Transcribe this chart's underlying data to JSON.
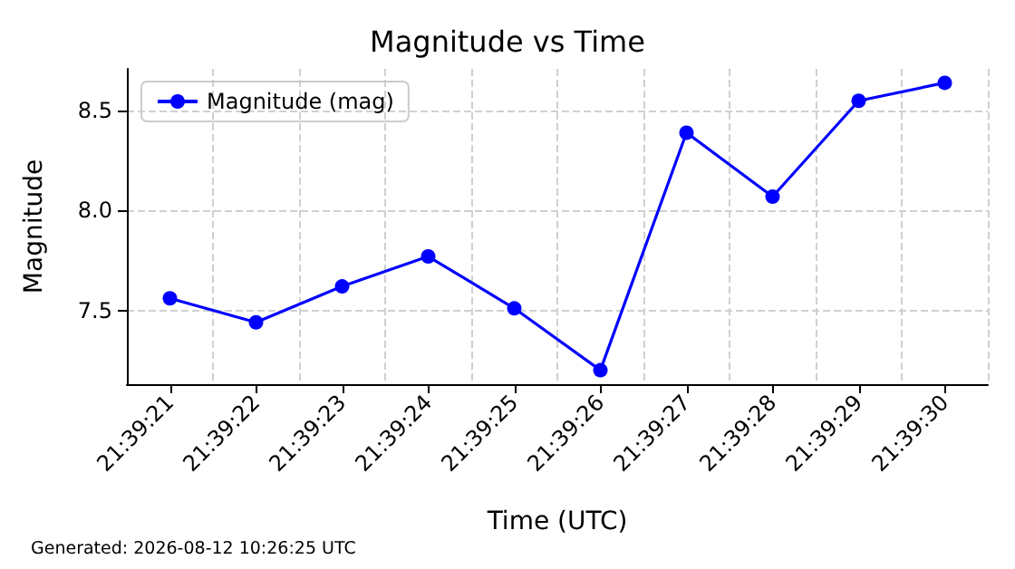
{
  "chart_data": {
    "type": "line",
    "title": "Magnitude vs Time",
    "xlabel": "Time (UTC)",
    "ylabel": "Magnitude",
    "categories": [
      "21:39:21",
      "21:39:22",
      "21:39:23",
      "21:39:24",
      "21:39:25",
      "21:39:26",
      "21:39:27",
      "21:39:28",
      "21:39:29",
      "21:39:30"
    ],
    "series": [
      {
        "name": "Magnitude (mag)",
        "color": "#0000ff",
        "values": [
          7.56,
          7.44,
          7.62,
          7.77,
          7.51,
          7.2,
          8.39,
          8.07,
          8.55,
          8.64
        ]
      }
    ],
    "ylim": [
      7.13,
      8.71
    ],
    "yticks": [
      {
        "value": 7.5,
        "label": "7.5"
      },
      {
        "value": 8.0,
        "label": "8.0"
      },
      {
        "value": 8.5,
        "label": "8.5"
      }
    ],
    "grid": true,
    "legend": "top left",
    "marker": "circle",
    "line_style": "solid",
    "annotations": [
      "Generated: 2026-08-12 10:26:25 UTC"
    ]
  }
}
